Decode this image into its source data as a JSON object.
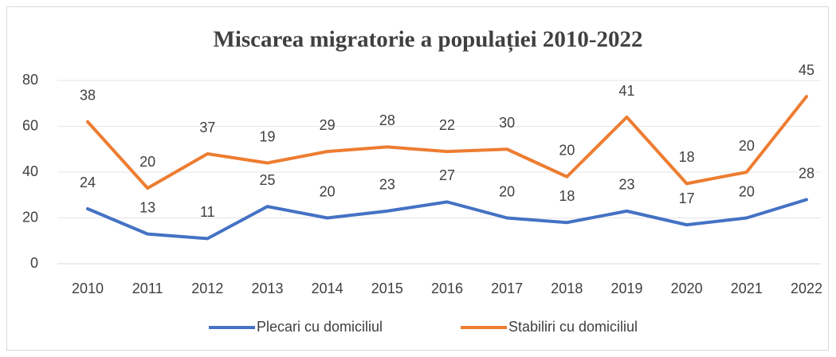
{
  "chart_data": {
    "type": "line",
    "stacked": true,
    "title": "Miscarea migratorie a populației 2010-2022",
    "categories": [
      "2010",
      "2011",
      "2012",
      "2013",
      "2014",
      "2015",
      "2016",
      "2017",
      "2018",
      "2019",
      "2020",
      "2021",
      "2022"
    ],
    "series": [
      {
        "name": "Plecari cu domiciliul",
        "color": "#4472c4",
        "values": [
          24,
          13,
          11,
          25,
          20,
          23,
          27,
          20,
          18,
          23,
          17,
          20,
          28
        ]
      },
      {
        "name": "Stabiliri cu domiciliul",
        "color": "#ed7d31",
        "values": [
          38,
          20,
          37,
          19,
          29,
          28,
          22,
          30,
          20,
          41,
          18,
          20,
          45
        ]
      }
    ],
    "ylim": [
      0,
      80
    ],
    "yticks": [
      0,
      20,
      40,
      60,
      80
    ],
    "grid": true,
    "legend": "bottom"
  }
}
